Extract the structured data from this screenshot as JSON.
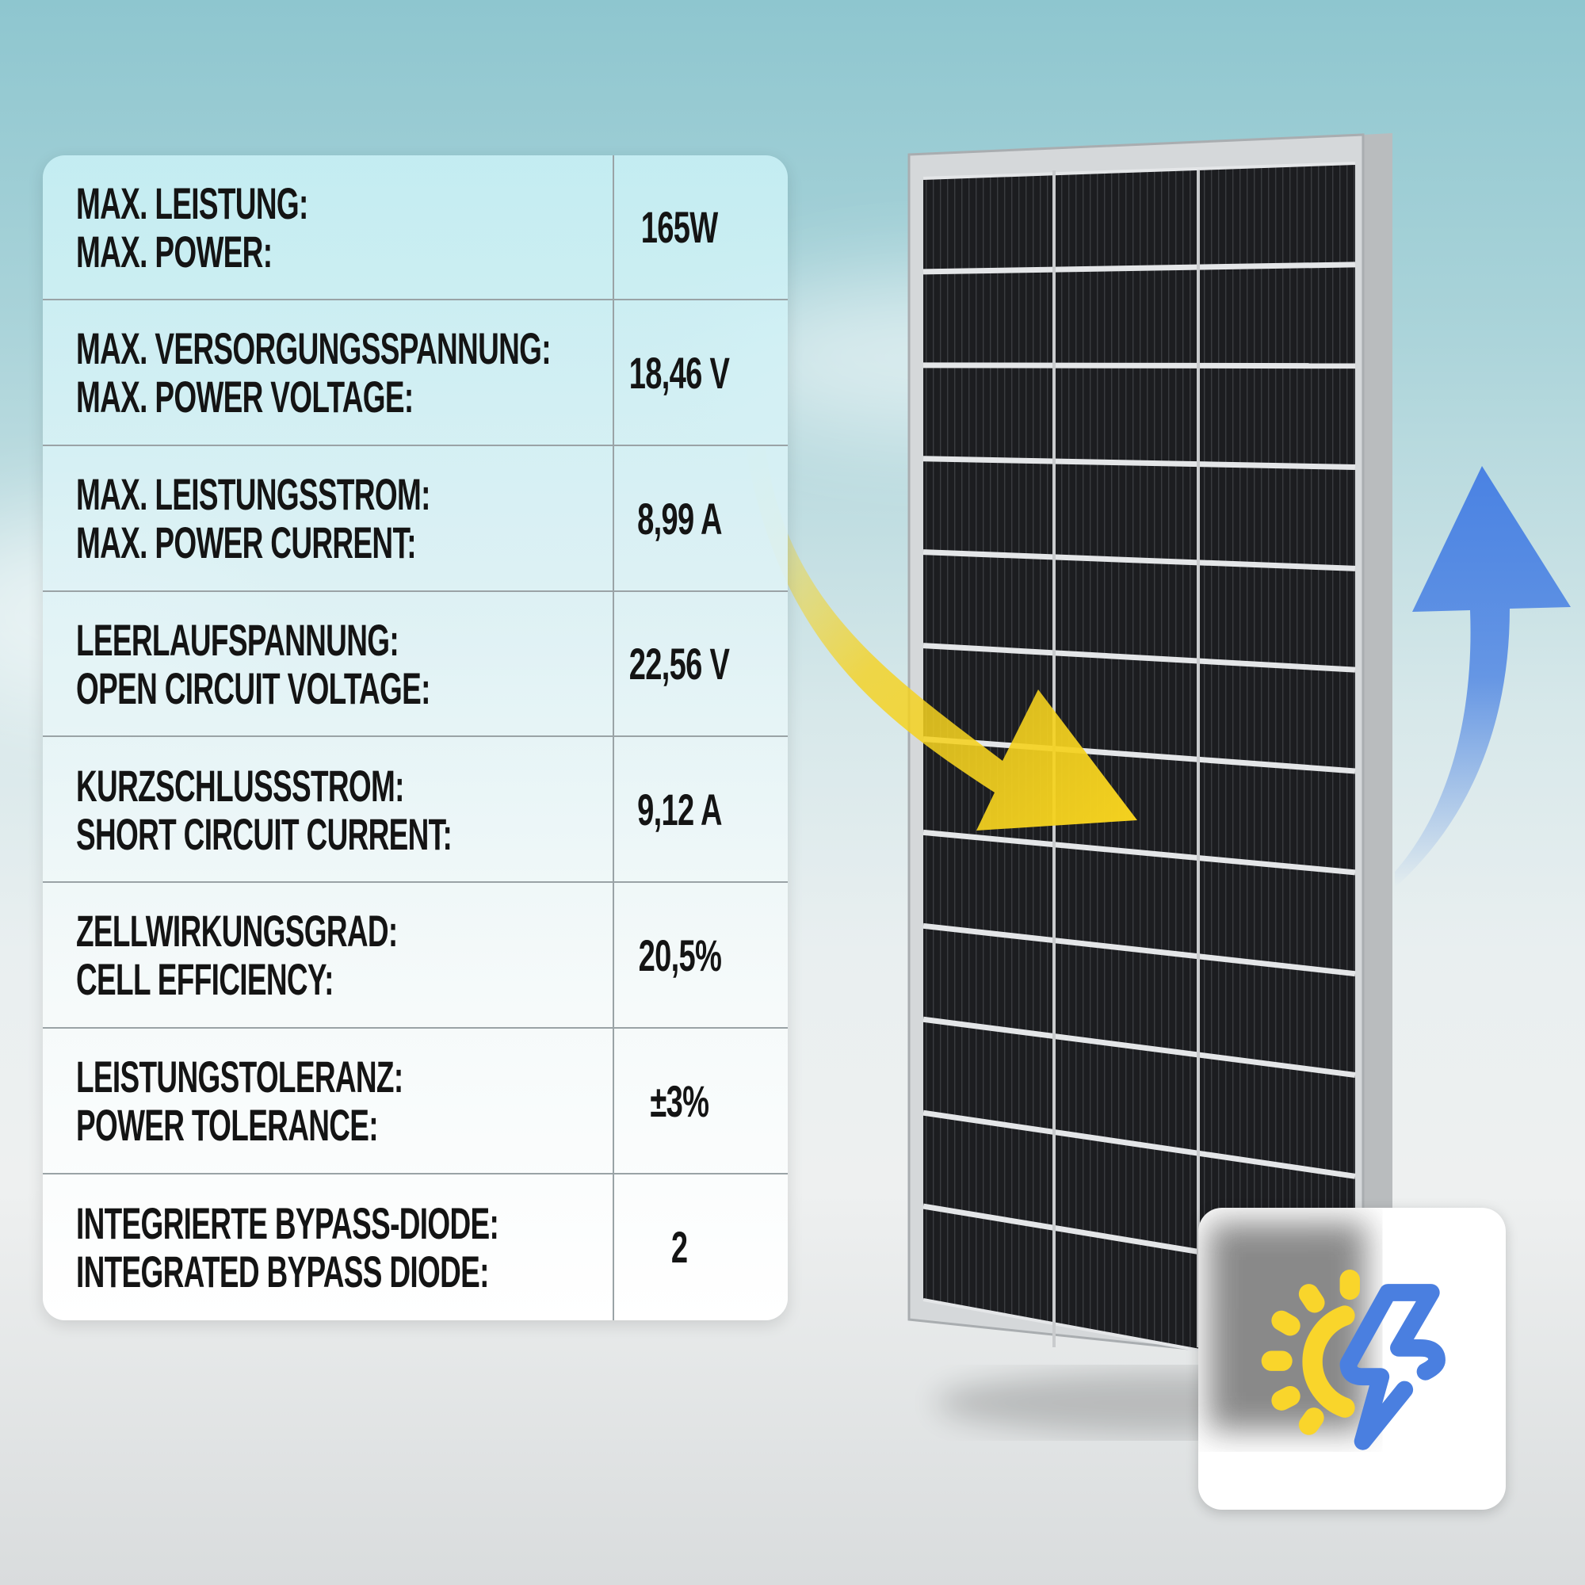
{
  "specs": [
    {
      "label_de": "MAX. LEISTUNG:",
      "label_en": "MAX. POWER:",
      "value": "165W"
    },
    {
      "label_de": "MAX. VERSORGUNGSSPANNUNG:",
      "label_en": "MAX. POWER VOLTAGE:",
      "value": "18,46 V"
    },
    {
      "label_de": "MAX. LEISTUNGSSTROM:",
      "label_en": "MAX. POWER CURRENT:",
      "value": "8,99 A"
    },
    {
      "label_de": "LEERLAUFSPANNUNG:",
      "label_en": "OPEN CIRCUIT VOLTAGE:",
      "value": "22,56 V"
    },
    {
      "label_de": "KURZSCHLUSSSTROM:",
      "label_en": "SHORT CIRCUIT CURRENT:",
      "value": "9,12 A"
    },
    {
      "label_de": "ZELLWIRKUNGSGRAD:",
      "label_en": "CELL EFFICIENCY:",
      "value": "20,5%"
    },
    {
      "label_de": "LEISTUNGSTOLERANZ:",
      "label_en": "POWER TOLERANCE:",
      "value": "±3%"
    },
    {
      "label_de": "INTEGRIERTE BYPASS-DIODE:",
      "label_en": "INTEGRATED BYPASS DIODE:",
      "value": "2"
    }
  ],
  "icons": {
    "sun": "sun-icon",
    "bolt": "lightning-bolt-icon",
    "arrow_in": "arrow-down-right-icon",
    "arrow_out": "arrow-up-icon"
  },
  "colors": {
    "sun": "#f9d52b",
    "bolt": "#4a7fe0",
    "arrow_in": "#f5d21f",
    "arrow_out": "#4a82e3",
    "text": "#141414"
  }
}
